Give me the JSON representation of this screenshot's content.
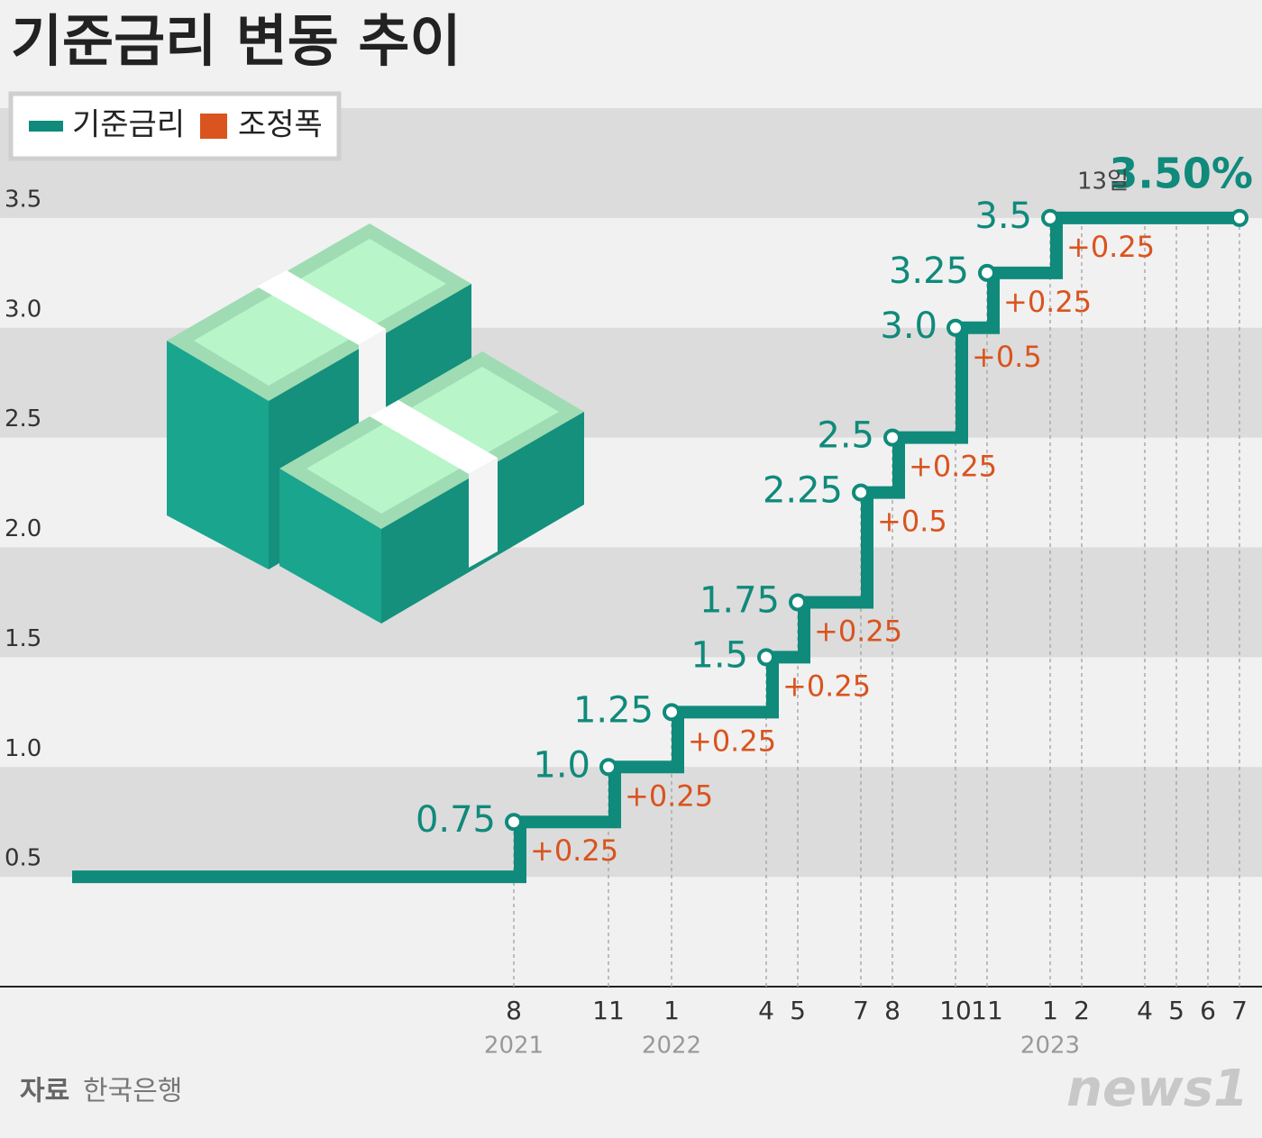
{
  "chart_data": {
    "type": "step",
    "title": "기준금리 변동 추이",
    "x": [
      "2020-06",
      "2021-08",
      "2021-11",
      "2022-01",
      "2022-04",
      "2022-05",
      "2022-07",
      "2022-08",
      "2022-10",
      "2022-11",
      "2023-01",
      "2023-07"
    ],
    "series": [
      {
        "name": "기준금리",
        "color": "#0f8a7b",
        "values": [
          0.5,
          0.75,
          1,
          1.25,
          1.5,
          1.75,
          2.25,
          2.5,
          3,
          3.25,
          3.5,
          3.5
        ],
        "value_labels": [
          null,
          "0.75",
          "1.0",
          "1.25",
          "1.5",
          "1.75",
          "2.25",
          "2.5",
          "3.0",
          "3.25",
          "3.5",
          "3.50%"
        ]
      },
      {
        "name": "조정폭",
        "color": "#d9541e",
        "values": [
          null,
          0.25,
          0.25,
          0.25,
          0.25,
          0.25,
          0.5,
          0.25,
          0.5,
          0.25,
          0.25,
          null
        ],
        "value_labels": [
          null,
          "+0.25",
          "+0.25",
          "+0.25",
          "+0.25",
          "+0.25",
          "+0.5",
          "+0.25",
          "+0.5",
          "+0.25",
          "+0.25",
          null
        ]
      }
    ],
    "annotations": [
      "13일"
    ],
    "xlim": [
      "2020-06",
      "2023-07"
    ],
    "xticks": [
      {
        "value": "2021-08",
        "label": "8"
      },
      {
        "value": "2021-11",
        "label": "11"
      },
      {
        "value": "2022-01",
        "label": "1"
      },
      {
        "value": "2022-04",
        "label": "4"
      },
      {
        "value": "2022-05",
        "label": "5"
      },
      {
        "value": "2022-07",
        "label": "7"
      },
      {
        "value": "2022-08",
        "label": "8"
      },
      {
        "value": "2022-10",
        "label": "10"
      },
      {
        "value": "2022-11",
        "label": "11"
      },
      {
        "value": "2023-01",
        "label": "1"
      },
      {
        "value": "2023-02",
        "label": "2"
      },
      {
        "value": "2023-04",
        "label": "4"
      },
      {
        "value": "2023-05",
        "label": "5"
      },
      {
        "value": "2023-06",
        "label": "6"
      },
      {
        "value": "2023-07",
        "label": "7"
      }
    ],
    "x_year_labels": [
      {
        "value": "2021-08",
        "label": "2021"
      },
      {
        "value": "2022-01",
        "label": "2022"
      },
      {
        "value": "2023-01",
        "label": "2023"
      }
    ],
    "ylim": [
      0,
      4
    ],
    "yticks": [
      0.5,
      {
        "value": 1,
        "label": "1.0"
      },
      1.5,
      {
        "value": 2,
        "label": "2.0"
      },
      2.5,
      {
        "value": 3,
        "label": "3.0"
      },
      3.5
    ],
    "grid": "bands",
    "source": {
      "label": "자료",
      "text": "한국은행"
    },
    "watermark": "news1"
  }
}
